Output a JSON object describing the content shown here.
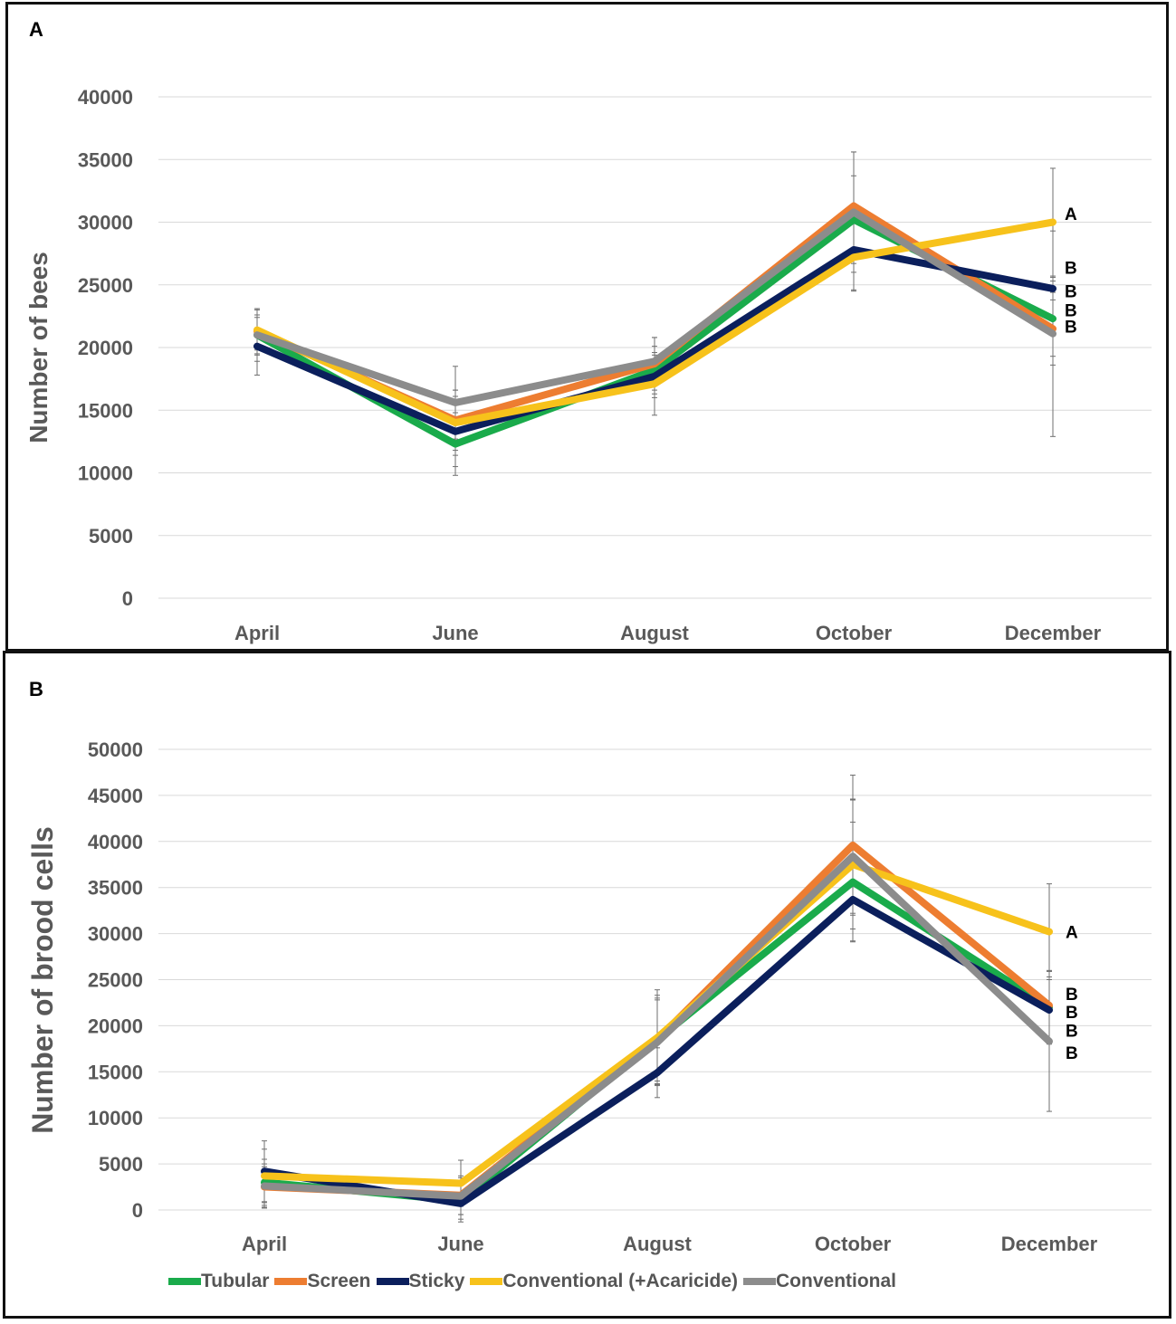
{
  "legend": {
    "items": [
      {
        "label": "Tubular",
        "color": "#1AAB4B"
      },
      {
        "label": "Screen",
        "color": "#ED7D31"
      },
      {
        "label": "Sticky",
        "color": "#0B1F5C"
      },
      {
        "label": "Conventional (+Acaricide)",
        "color": "#F7C21B"
      },
      {
        "label": "Conventional",
        "color": "#8C8C8C"
      }
    ]
  },
  "chart_data": [
    {
      "panel": "A",
      "type": "line",
      "ylabel": "Number of bees",
      "xlabel": "",
      "categories": [
        "April",
        "June",
        "August",
        "October",
        "December"
      ],
      "ylim": [
        0,
        40000
      ],
      "yticks": [
        "0",
        "5000",
        "10000",
        "15000",
        "20000",
        "25000",
        "30000",
        "35000",
        "40000"
      ],
      "grid": true,
      "series": [
        {
          "name": "Tubular",
          "color": "#1AAB4B",
          "values": [
            21000,
            12300,
            18200,
            30200,
            22300
          ],
          "err": [
            2100,
            2500,
            1900,
            3500,
            3000
          ]
        },
        {
          "name": "Screen",
          "color": "#ED7D31",
          "values": [
            21300,
            14200,
            18700,
            31300,
            21500
          ],
          "err": [
            1800,
            2400,
            2100,
            4300,
            2900
          ]
        },
        {
          "name": "Sticky",
          "color": "#0B1F5C",
          "values": [
            20100,
            13300,
            17700,
            27800,
            24700
          ],
          "err": [
            2300,
            2800,
            1700,
            3200,
            900
          ]
        },
        {
          "name": "Conventional (+Acaricide)",
          "color": "#F7C21B",
          "values": [
            21400,
            14000,
            17100,
            27200,
            30000
          ],
          "err": [
            1600,
            2600,
            2500,
            2700,
            4300
          ]
        },
        {
          "name": "Conventional",
          "color": "#8C8C8C",
          "values": [
            21000,
            15600,
            18900,
            30800,
            21100
          ],
          "err": [
            1600,
            2900,
            1900,
            4800,
            8200
          ]
        }
      ],
      "annotations": {
        "labels": [
          "A",
          "B",
          "B",
          "B",
          "B"
        ],
        "values": [
          30700,
          26400,
          24500,
          23000,
          21700
        ]
      }
    },
    {
      "panel": "B",
      "type": "line",
      "ylabel": "Number of brood cells",
      "xlabel": "",
      "categories": [
        "April",
        "June",
        "August",
        "October",
        "December"
      ],
      "ylim": [
        0,
        50000
      ],
      "yticks": [
        "0",
        "5000",
        "10000",
        "15000",
        "20000",
        "25000",
        "30000",
        "35000",
        "40000",
        "45000",
        "50000"
      ],
      "grid": true,
      "series": [
        {
          "name": "Tubular",
          "color": "#1AAB4B",
          "values": [
            3000,
            1000,
            18500,
            35600,
            22000
          ],
          "err": [
            2500,
            2000,
            4500,
            6500,
            4000
          ]
        },
        {
          "name": "Screen",
          "color": "#ED7D31",
          "values": [
            2500,
            1600,
            18500,
            39600,
            22200
          ],
          "err": [
            2200,
            2100,
            4800,
            7600,
            3700
          ]
        },
        {
          "name": "Sticky",
          "color": "#0B1F5C",
          "values": [
            4200,
            700,
            14900,
            33700,
            21700
          ],
          "err": [
            3300,
            2000,
            2700,
            4500,
            3600
          ]
        },
        {
          "name": "Conventional (+Acaricide)",
          "color": "#F7C21B",
          "values": [
            3700,
            2900,
            18700,
            37500,
            30200
          ],
          "err": [
            2900,
            2500,
            5200,
            7000,
            5200
          ]
        },
        {
          "name": "Conventional",
          "color": "#8C8C8C",
          "values": [
            2600,
            1500,
            18200,
            38400,
            18300
          ],
          "err": [
            2400,
            2000,
            4600,
            6200,
            7600
          ]
        }
      ],
      "annotations": {
        "labels": [
          "A",
          "B",
          "B",
          "B",
          "B"
        ],
        "values": [
          30200,
          23500,
          21500,
          19500,
          17100
        ]
      }
    }
  ]
}
